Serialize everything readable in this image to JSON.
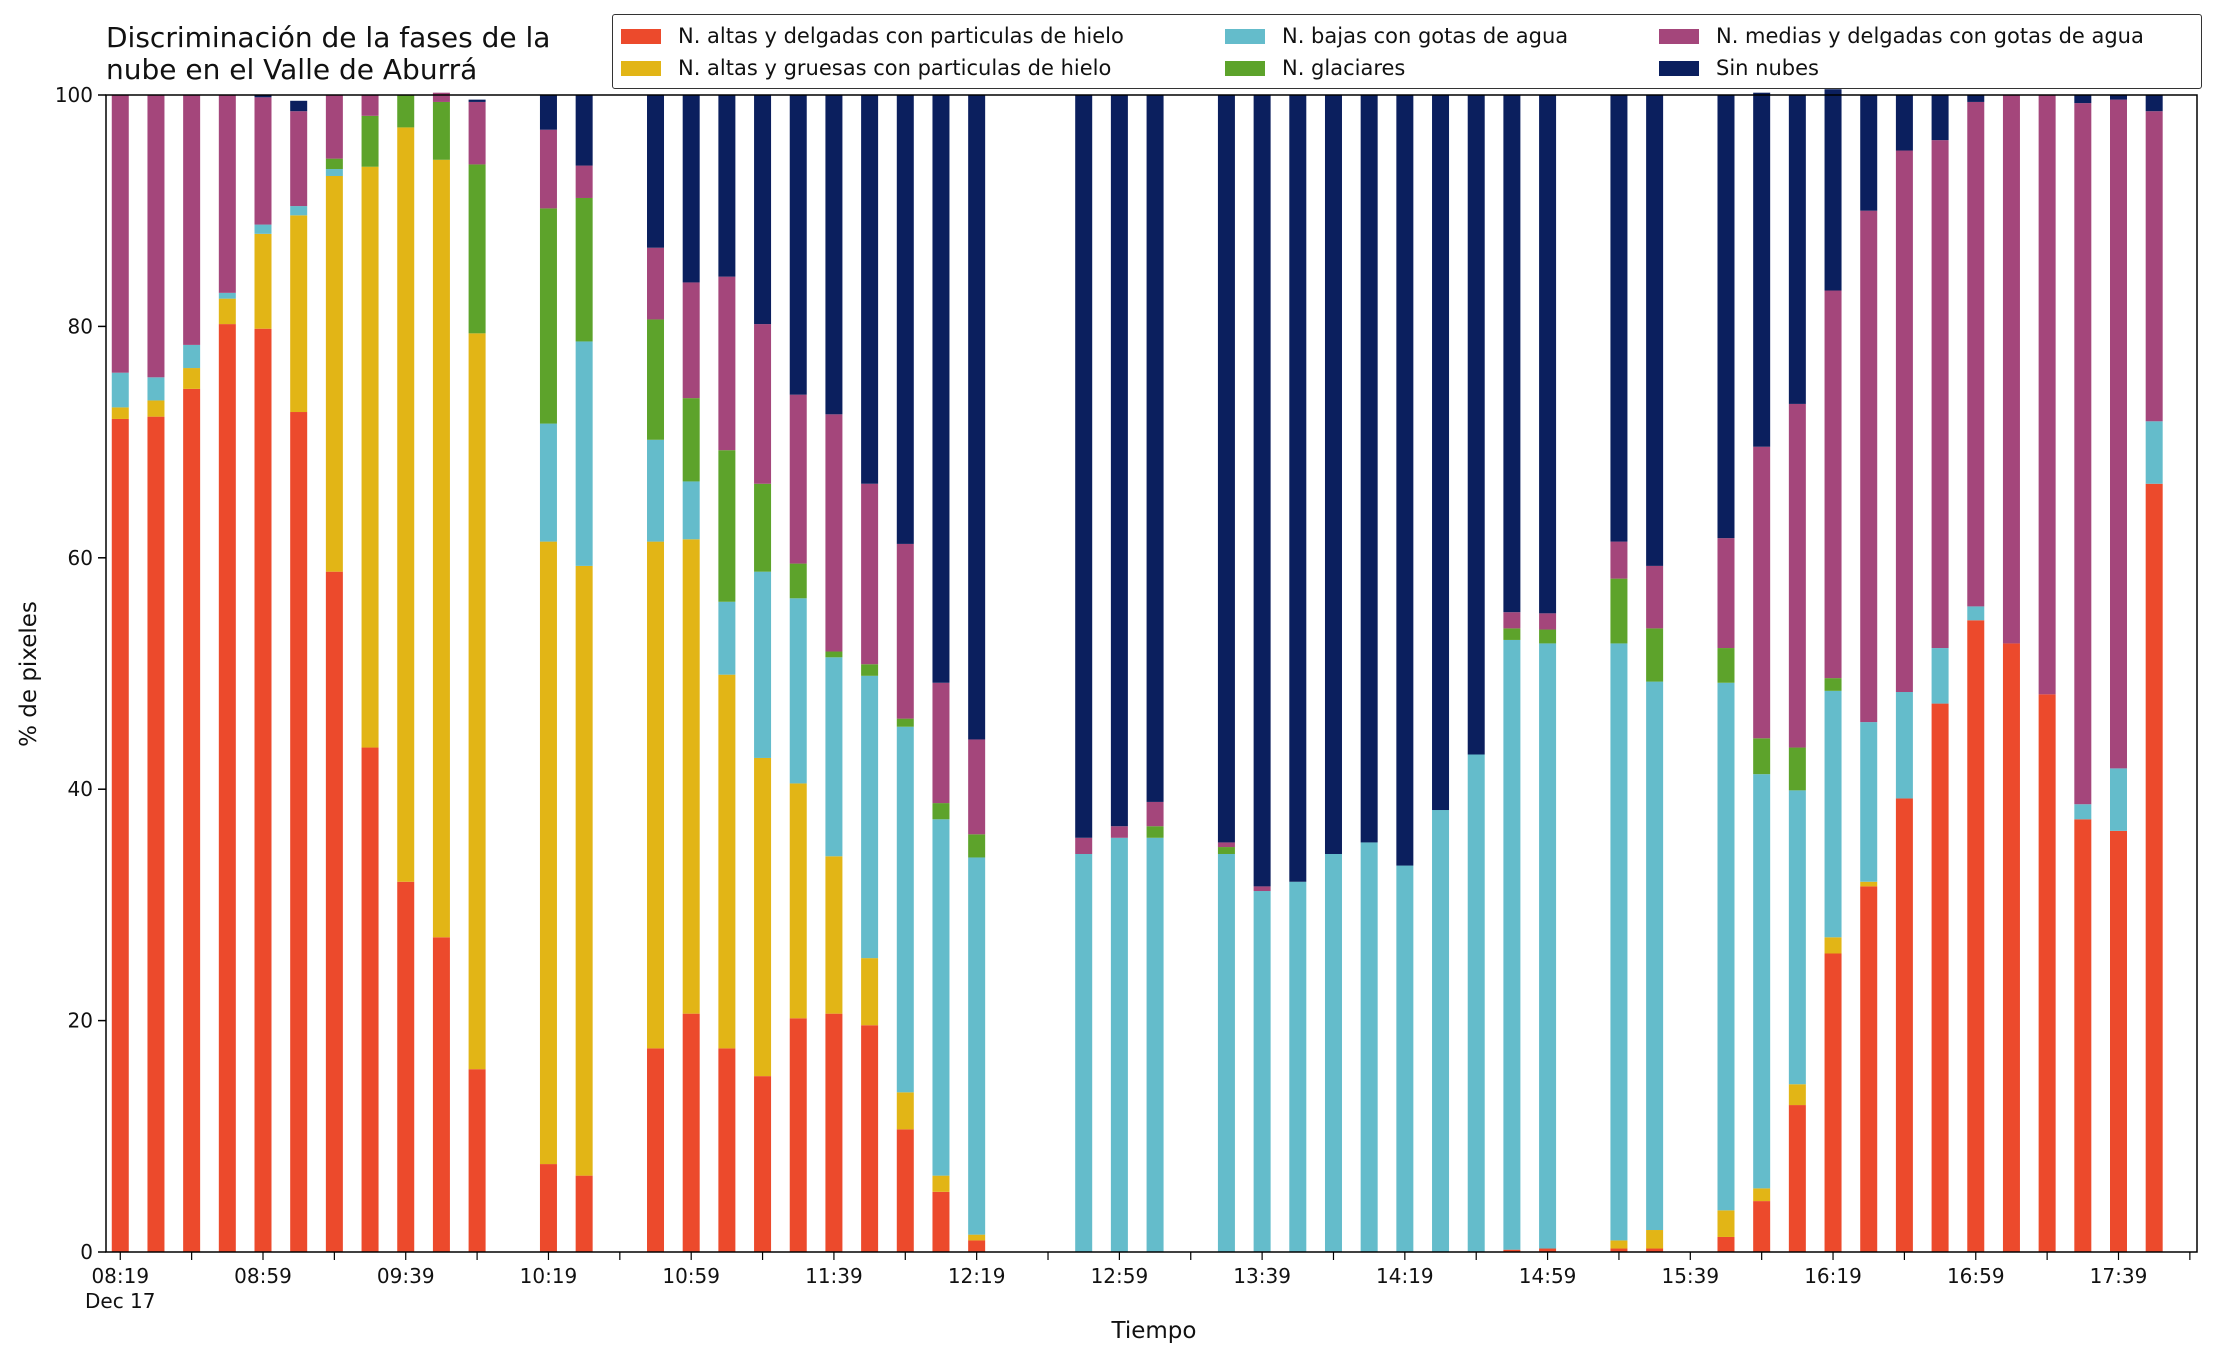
{
  "chart_data": {
    "type": "bar",
    "stacked": true,
    "title": "Discriminación de la fases de la nube en el Valle de Aburrá",
    "title_lines": [
      "Discriminación de la fases de la",
      "nube en el Valle de Aburrá"
    ],
    "xlabel": "Tiempo",
    "ylabel": "% de pixeles",
    "ylim": [
      0,
      100
    ],
    "yticks": [
      0,
      20,
      40,
      60,
      80,
      100
    ],
    "x_axis_start": "08:15",
    "x_axis_end": "18:01",
    "date_label": "Dec 17",
    "xtick_labels": [
      "08:19",
      "08:59",
      "09:39",
      "10:19",
      "10:59",
      "11:39",
      "12:19",
      "12:59",
      "13:39",
      "14:19",
      "14:59",
      "15:39",
      "16:19",
      "16:59",
      "17:39"
    ],
    "legend_position": "top-right",
    "grid": false,
    "times": [
      "08:19",
      "08:29",
      "08:39",
      "08:49",
      "08:59",
      "09:09",
      "09:19",
      "09:29",
      "09:39",
      "09:49",
      "09:59",
      "10:19",
      "10:29",
      "10:49",
      "10:59",
      "11:09",
      "11:19",
      "11:29",
      "11:39",
      "11:49",
      "11:59",
      "12:09",
      "12:19",
      "12:49",
      "12:59",
      "13:09",
      "13:29",
      "13:39",
      "13:49",
      "13:59",
      "14:09",
      "14:19",
      "14:29",
      "14:39",
      "14:49",
      "14:59",
      "15:19",
      "15:29",
      "15:49",
      "15:59",
      "16:09",
      "16:19",
      "16:29",
      "16:39",
      "16:49",
      "16:59",
      "17:09",
      "17:19",
      "17:29",
      "17:39",
      "17:49"
    ],
    "series": [
      {
        "name": "N. altas y delgadas con particulas de hielo",
        "color": "#ec4a2c",
        "values": [
          72,
          72.2,
          74.6,
          80.2,
          79.8,
          72.6,
          58.8,
          43.6,
          32,
          27.2,
          15.8,
          7.6,
          6.6,
          17.6,
          20.6,
          17.6,
          15.2,
          20.2,
          20.6,
          19.6,
          10.6,
          5.2,
          1,
          0,
          0,
          0,
          0,
          0,
          0,
          0,
          0,
          0,
          0,
          0,
          0.2,
          0.3,
          0.3,
          0.3,
          1.3,
          4.4,
          12.7,
          25.8,
          31.6,
          39.2,
          47.4,
          54.6,
          52.6,
          48.2,
          37.4,
          36.4,
          66.4
        ]
      },
      {
        "name": "N. altas y gruesas con particulas de hielo",
        "color": "#e2b516",
        "values": [
          1,
          1.4,
          1.8,
          2.2,
          8.2,
          17,
          34.2,
          50.2,
          65.2,
          67.2,
          63.6,
          53.8,
          52.7,
          43.8,
          41,
          32.3,
          27.5,
          20.3,
          13.6,
          5.8,
          3.2,
          1.4,
          0.5,
          0,
          0,
          0,
          0,
          0,
          0,
          0,
          0,
          0,
          0,
          0,
          0,
          0,
          0.7,
          1.6,
          2.3,
          1.1,
          1.8,
          1.4,
          0.4,
          0,
          0,
          0,
          0,
          0,
          0,
          0,
          0
        ]
      },
      {
        "name": "N. bajas con gotas de agua",
        "color": "#64bccb",
        "values": [
          3,
          2,
          2,
          0.5,
          0.8,
          0.8,
          0.6,
          0,
          0,
          0,
          0,
          10.2,
          19.4,
          8.8,
          5,
          6.3,
          16.1,
          16,
          17.2,
          24.4,
          31.6,
          30.8,
          32.6,
          34.4,
          35.8,
          35.8,
          34.4,
          31.2,
          32,
          34.4,
          35.4,
          33.4,
          38.2,
          43,
          52.7,
          52.3,
          51.6,
          47.4,
          45.6,
          35.8,
          25.4,
          21.3,
          13.8,
          9.2,
          4.8,
          1.2,
          0,
          0,
          1.3,
          5.4,
          5.4
        ]
      },
      {
        "name": "N. glaciares",
        "color": "#5da32b",
        "values": [
          0,
          0,
          0,
          0,
          0,
          0,
          0.9,
          4.4,
          2.8,
          5,
          14.6,
          18.6,
          12.4,
          10.4,
          7.2,
          13.1,
          7.6,
          3,
          0.5,
          1,
          0.7,
          1.4,
          2,
          0,
          0,
          1,
          0.6,
          0,
          0,
          0,
          0,
          0,
          0,
          0,
          1,
          1.2,
          5.6,
          4.6,
          3,
          3.1,
          3.7,
          1.1,
          0,
          0,
          0,
          0,
          0,
          0,
          0,
          0,
          0
        ]
      },
      {
        "name": "N. medias y delgadas con gotas de agua",
        "color": "#a4467b",
        "values": [
          24,
          24.4,
          21.6,
          17.1,
          11,
          8.2,
          5.5,
          1.8,
          0,
          0.8,
          5.4,
          6.8,
          2.8,
          6.2,
          10,
          15,
          13.8,
          14.6,
          20.5,
          15.6,
          15.1,
          10.4,
          8.2,
          1.4,
          1,
          2.1,
          0.4,
          0.4,
          0,
          0,
          0,
          0,
          0,
          0,
          1.4,
          1.4,
          3.2,
          5.4,
          9.5,
          25.2,
          29.7,
          33.5,
          44.2,
          46.8,
          43.9,
          43.6,
          47.4,
          51.8,
          60.6,
          57.8,
          26.8
        ]
      },
      {
        "name": "Sin nubes",
        "color": "#0b1f5e",
        "values": [
          0,
          0,
          0,
          0,
          0.2,
          0.9,
          0,
          0,
          0,
          0,
          0.2,
          3,
          6.1,
          13.2,
          16.2,
          15.7,
          19.8,
          25.9,
          27.6,
          33.6,
          38.8,
          50.8,
          55.7,
          64.2,
          63.2,
          61.1,
          64.6,
          68.4,
          68,
          65.6,
          64.6,
          66.6,
          61.8,
          57,
          44.7,
          44.8,
          38.6,
          40.7,
          38.3,
          30.6,
          26.7,
          17.4,
          10,
          4.8,
          3.9,
          0.6,
          0,
          0,
          0.7,
          0.4,
          1.4
        ]
      }
    ]
  }
}
